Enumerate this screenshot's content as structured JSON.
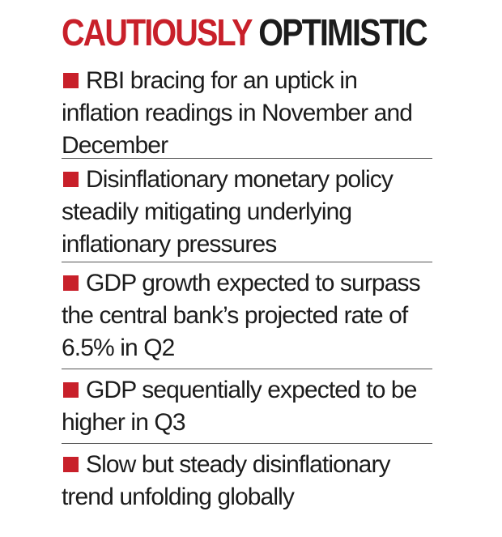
{
  "headline": {
    "word_1": "CAUTIOUSLY",
    "word_2": "OPTIMISTIC"
  },
  "colors": {
    "accent": "#c8202a",
    "text": "#1c1c1c",
    "divider": "#555555"
  },
  "items": [
    {
      "text": "RBI bracing for an uptick in inflation readings in November and December"
    },
    {
      "text": "Disinflationary monetary policy steadily mitigating underlying inflationary pressures"
    },
    {
      "text": "GDP growth expected to surpass the central bank’s projected rate of 6.5% in Q2"
    },
    {
      "text": "GDP sequentially expected to be higher in Q3"
    },
    {
      "text": "Slow but steady disinflationary trend unfolding globally"
    }
  ]
}
